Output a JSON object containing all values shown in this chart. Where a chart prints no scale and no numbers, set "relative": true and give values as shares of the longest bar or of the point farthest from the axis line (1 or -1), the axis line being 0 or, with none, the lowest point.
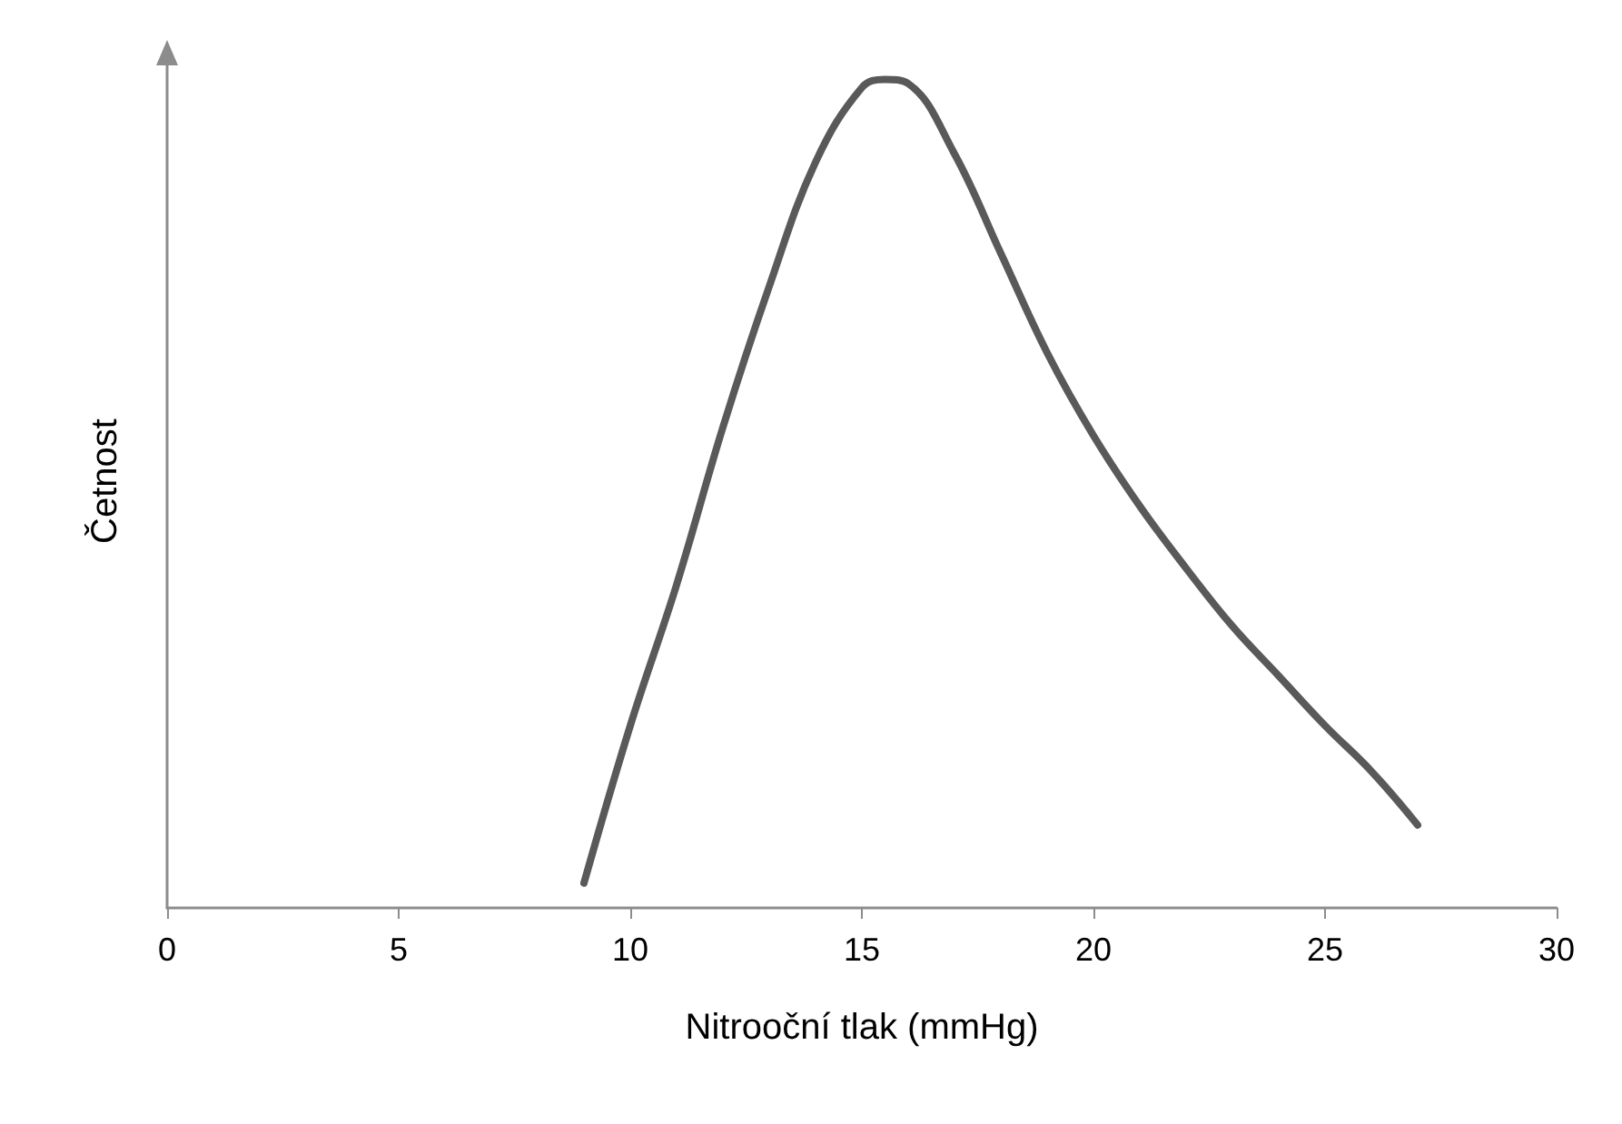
{
  "chart_data": {
    "type": "line",
    "xlabel": "Nitrooční tlak (mmHg)",
    "ylabel": "Četnost",
    "relative": true,
    "xlim": [
      0,
      30
    ],
    "xticks": [
      0,
      5,
      10,
      15,
      20,
      25,
      30
    ],
    "grid": false,
    "marker": "none",
    "line_style": "solid",
    "series": [
      {
        "color": "#595959",
        "x": [
          9,
          10,
          11,
          12,
          13,
          14,
          15,
          15.5,
          16,
          17,
          18,
          19,
          20,
          21,
          22,
          23,
          24,
          25,
          26,
          27
        ],
        "values": [
          0.03,
          0.22,
          0.39,
          0.58,
          0.75,
          0.9,
          0.99,
          1,
          0.995,
          0.91,
          0.79,
          0.67,
          0.57,
          0.485,
          0.41,
          0.34,
          0.28,
          0.22,
          0.165,
          0.1
        ]
      }
    ]
  }
}
